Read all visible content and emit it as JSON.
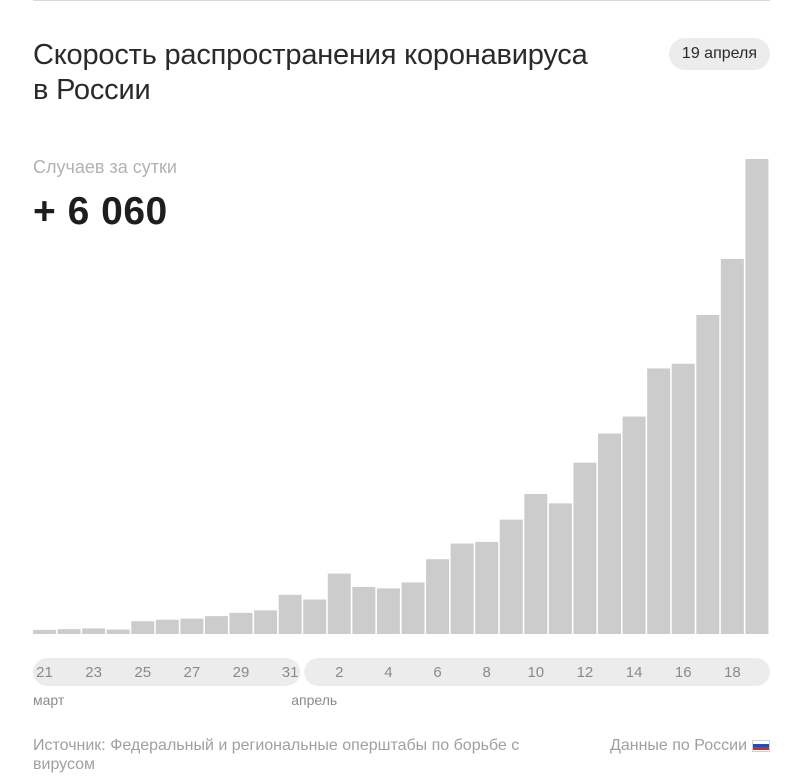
{
  "header": {
    "title": "Скорость распространения коронавируса в России",
    "date": "19 апреля"
  },
  "metric": {
    "label": "Случаев за сутки",
    "value": "+ 6 060"
  },
  "footer": {
    "source": "Источник: Федеральный и региональные оперштабы по борьбе с вирусом",
    "country_link": "Данные по России",
    "flag_colors": [
      "#ffffff",
      "#1f4fbf",
      "#d52b1e"
    ]
  },
  "colors": {
    "bar": "#cccccc",
    "pill": "#ececec"
  },
  "chart_data": {
    "type": "bar",
    "title": "",
    "xlabel": "",
    "ylabel": "",
    "categories": [
      "21 марта",
      "22 марта",
      "23 марта",
      "24 марта",
      "25 марта",
      "26 марта",
      "27 марта",
      "28 марта",
      "29 марта",
      "30 марта",
      "31 марта",
      "1 апреля",
      "2 апреля",
      "3 апреля",
      "4 апреля",
      "5 апреля",
      "6 апреля",
      "7 апреля",
      "8 апреля",
      "9 апреля",
      "10 апреля",
      "11 апреля",
      "12 апреля",
      "13 апреля",
      "14 апреля",
      "15 апреля",
      "16 апреля",
      "17 апреля",
      "18 апреля",
      "19 апреля"
    ],
    "values": [
      53,
      62,
      71,
      57,
      163,
      182,
      196,
      228,
      270,
      302,
      500,
      440,
      771,
      601,
      582,
      658,
      954,
      1154,
      1175,
      1459,
      1786,
      1667,
      2186,
      2558,
      2774,
      3388,
      3448,
      4070,
      4785,
      6060
    ],
    "ylim": [
      0,
      6060
    ],
    "tick_labels": [
      "21",
      "23",
      "25",
      "27",
      "29",
      "31",
      "2",
      "4",
      "6",
      "8",
      "10",
      "12",
      "14",
      "16",
      "18"
    ],
    "tick_indices": [
      0,
      2,
      4,
      6,
      8,
      10,
      12,
      14,
      16,
      18,
      20,
      22,
      24,
      26,
      28
    ],
    "month_labels": [
      {
        "text": "март",
        "index": 0
      },
      {
        "text": "апрель",
        "index": 11
      }
    ]
  }
}
